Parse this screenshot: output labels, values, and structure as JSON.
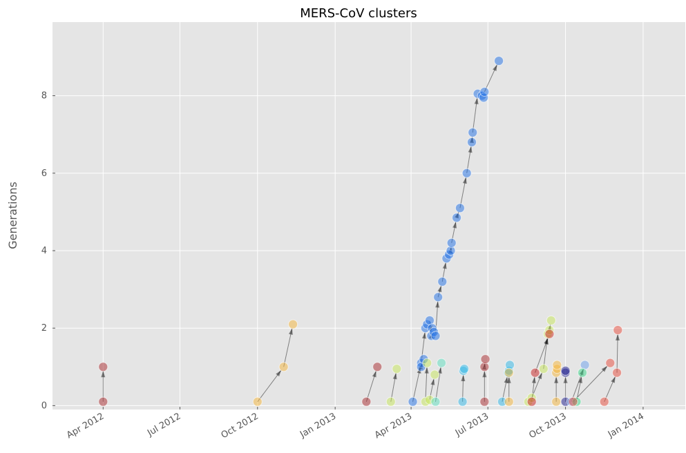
{
  "chart_data": {
    "type": "scatter",
    "title": "MERS-CoV clusters",
    "xlabel": "",
    "ylabel": "Generations",
    "xlim": [
      "2012-02-01",
      "2014-02-20"
    ],
    "ylim": [
      -0.1,
      9.9
    ],
    "x_tick_values": [
      "2012-04-01",
      "2012-07-01",
      "2012-10-01",
      "2013-01-01",
      "2013-04-01",
      "2013-07-01",
      "2013-10-01",
      "2014-01-01"
    ],
    "x_tick_labels": [
      "Apr 2012",
      "Jul 2012",
      "Oct 2012",
      "Jan 2013",
      "Apr 2013",
      "Jul 2013",
      "Oct 2013",
      "Jan 2014"
    ],
    "y_tick_values": [
      0,
      2,
      4,
      6,
      8
    ],
    "y_tick_labels": [
      "0",
      "2",
      "4",
      "6",
      "8"
    ],
    "grid": true,
    "background": "#e5e5e5",
    "grid_color": "#ffffff",
    "marker_opacity": 0.5,
    "arrow_color": "#000000",
    "clusters": [
      {
        "color": "#a8282b",
        "points": [
          [
            "2012-04-01",
            0.1
          ],
          [
            "2012-04-01",
            1.0
          ]
        ]
      },
      {
        "color": "#f5b53a",
        "points": [
          [
            "2012-10-01",
            0.1
          ],
          [
            "2012-11-01",
            1.0
          ],
          [
            "2012-11-12",
            2.1
          ]
        ]
      },
      {
        "color": "#a8282b",
        "points": [
          [
            "2013-02-07",
            0.1
          ],
          [
            "2013-02-20",
            1.0
          ]
        ]
      },
      {
        "color": "#c8e85a",
        "points": [
          [
            "2013-03-08",
            0.1
          ],
          [
            "2013-03-15",
            0.95
          ]
        ]
      },
      {
        "color": "#1f6fe6",
        "points": [
          [
            "2013-04-03",
            0.1
          ],
          [
            "2013-04-13",
            1.1
          ],
          [
            "2013-04-18",
            2.0
          ],
          [
            "2013-04-20",
            2.1
          ],
          [
            "2013-04-23",
            2.2
          ],
          [
            "2013-04-25",
            1.8
          ],
          [
            "2013-04-26",
            2.0
          ],
          [
            "2013-04-28",
            1.9
          ],
          [
            "2013-04-30",
            1.8
          ],
          [
            "2013-05-03",
            2.8
          ],
          [
            "2013-05-08",
            3.2
          ],
          [
            "2013-05-13",
            3.8
          ],
          [
            "2013-05-16",
            3.9
          ],
          [
            "2013-05-18",
            4.0
          ],
          [
            "2013-05-19",
            4.2
          ],
          [
            "2013-05-25",
            4.85
          ],
          [
            "2013-05-29",
            5.1
          ],
          [
            "2013-06-06",
            6.0
          ],
          [
            "2013-06-12",
            6.8
          ],
          [
            "2013-06-13",
            7.05
          ],
          [
            "2013-06-19",
            8.05
          ],
          [
            "2013-06-24",
            8.0
          ],
          [
            "2013-06-26",
            7.95
          ],
          [
            "2013-06-27",
            8.1
          ],
          [
            "2013-07-14",
            8.9
          ]
        ]
      },
      {
        "color": "#1f6fe6",
        "points": [
          [
            "2013-04-13",
            1.0
          ],
          [
            "2013-04-16",
            1.2
          ]
        ]
      },
      {
        "color": "#c8e85a",
        "points": [
          [
            "2013-04-18",
            0.1
          ],
          [
            "2013-04-20",
            1.1
          ]
        ]
      },
      {
        "color": "#c8e85a",
        "points": [
          [
            "2013-04-23",
            0.15
          ],
          [
            "2013-04-29",
            0.8
          ]
        ]
      },
      {
        "color": "#5ee0c0",
        "points": [
          [
            "2013-04-30",
            0.1
          ],
          [
            "2013-05-07",
            1.1
          ]
        ]
      },
      {
        "color": "#2fb8e8",
        "points": [
          [
            "2013-06-01",
            0.1
          ],
          [
            "2013-06-02",
            0.9
          ],
          [
            "2013-06-03",
            0.95
          ]
        ]
      },
      {
        "color": "#a8282b",
        "points": [
          [
            "2013-06-27",
            0.1
          ],
          [
            "2013-06-27",
            1.0
          ],
          [
            "2013-06-28",
            1.2
          ]
        ]
      },
      {
        "color": "#2fb8e8",
        "points": [
          [
            "2013-07-18",
            0.1
          ],
          [
            "2013-07-25",
            0.85
          ],
          [
            "2013-07-26",
            0.9
          ],
          [
            "2013-07-27",
            1.05
          ]
        ]
      },
      {
        "color": "#f5b53a",
        "points": [
          [
            "2013-07-26",
            0.1
          ],
          [
            "2013-07-26",
            0.85
          ]
        ]
      },
      {
        "color": "#c8e85a",
        "points": [
          [
            "2013-08-18",
            0.1
          ],
          [
            "2013-08-22",
            0.2
          ],
          [
            "2013-09-05",
            0.95
          ],
          [
            "2013-09-10",
            1.85
          ],
          [
            "2013-09-12",
            1.95
          ],
          [
            "2013-09-14",
            2.2
          ]
        ]
      },
      {
        "color": "#c81e1e",
        "points": [
          [
            "2013-08-22",
            0.1
          ],
          [
            "2013-08-26",
            0.85
          ],
          [
            "2013-09-12",
            1.85
          ]
        ]
      },
      {
        "color": "#f5b53a",
        "points": [
          [
            "2013-09-20",
            0.1
          ],
          [
            "2013-09-20",
            0.85
          ],
          [
            "2013-09-21",
            0.95
          ],
          [
            "2013-09-21",
            1.05
          ]
        ]
      },
      {
        "color": "#1a1a8c",
        "points": [
          [
            "2013-10-01",
            0.1
          ],
          [
            "2013-10-01",
            0.85
          ],
          [
            "2013-10-01",
            0.9
          ]
        ]
      },
      {
        "color": "#6aa0ee",
        "points": [
          [
            "2013-10-08",
            0.1
          ],
          [
            "2013-10-24",
            1.05
          ]
        ]
      },
      {
        "color": "#3ad88a",
        "points": [
          [
            "2013-10-14",
            0.1
          ],
          [
            "2013-10-21",
            0.85
          ]
        ]
      },
      {
        "color": "#e84a3a",
        "points": [
          [
            "2013-10-10",
            0.1
          ],
          [
            "2013-11-23",
            1.1
          ]
        ]
      },
      {
        "color": "#e84a3a",
        "points": [
          [
            "2013-11-16",
            0.1
          ],
          [
            "2013-12-01",
            0.85
          ],
          [
            "2013-12-02",
            1.95
          ]
        ]
      }
    ]
  }
}
